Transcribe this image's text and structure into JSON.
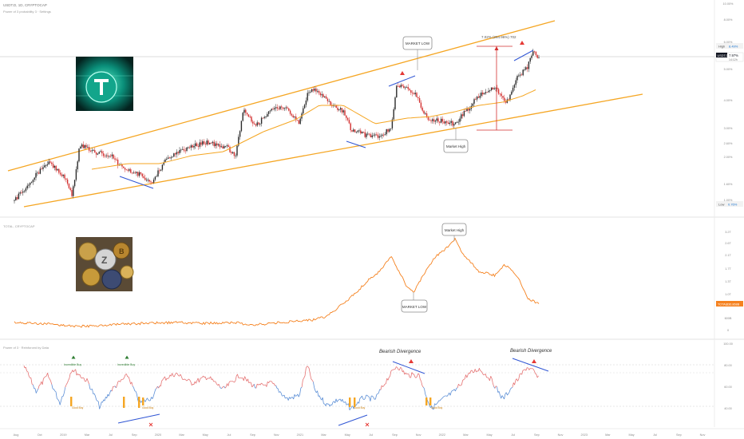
{
  "header": {
    "symbol_line": "USDT.D, 1D, CRYPTOCAP",
    "indicator_line": "Power of 3 probability 3 · Settings"
  },
  "panes": {
    "sub_title": "TOTAL, CRYPTOCAP",
    "osc_title": "Power of 3 · Reinforced by Data"
  },
  "price_labels": {
    "high_label": "High",
    "high_value": "8.49%",
    "current_symbol": "USDT.D",
    "current_value": "7.97%",
    "current_time": "14:12h",
    "low_label": "Low",
    "low_value": "0.76%",
    "total_symbol": "TOTAL",
    "total_value": "836.868B"
  },
  "main_axis_ticks": [
    "10.00%",
    "8.00%",
    "6.00%",
    "5.00%",
    "4.00%",
    "3.00%",
    "2.60%",
    "2.00%",
    "1.60%",
    "1.00%"
  ],
  "sub_axis_ticks": [
    "3.2T",
    "2.6T",
    "2.1T",
    "1.7T",
    "1.3T",
    "1.0T",
    "600B",
    "0"
  ],
  "osc_axis_ticks": [
    "100.00",
    "80.00",
    "60.00",
    "40.00"
  ],
  "time_axis_ticks": [
    "Aug",
    "Oct",
    "2019",
    "Mar",
    "Jul",
    "Sep",
    "2020",
    "Mar",
    "May",
    "Jul",
    "Sep",
    "Nov",
    "2021",
    "Mar",
    "May",
    "Jul",
    "Sep",
    "Nov",
    "2022",
    "Mar",
    "May",
    "Jul",
    "Sep",
    "Nov",
    "2023",
    "Mar",
    "May",
    "Jul",
    "Sep",
    "Nov"
  ],
  "callouts": {
    "main_market_low": "MARKET LOW",
    "main_market_high": "Market High",
    "measure": "7.02% (264.96%) 702",
    "sub_market_high": "Market High",
    "sub_market_low": "MARKET LOW",
    "osc_bearish_1": "Bearish Divergence",
    "osc_bearish_2": "Bearish Divergence",
    "incredible_buy_1": "Incredible Buy",
    "incredible_buy_2": "Incredible Buy",
    "good_buy_1": "Good Buy",
    "good_buy_2": "Good Buy",
    "good_buy_3": "Good Buy",
    "good_buy_4": "Good Buy"
  },
  "colors": {
    "channel": "#f5a623",
    "candle_up": "#2b2b2b",
    "candle_down": "#d32f2f",
    "ma_line": "#f5a623",
    "divergence": "#2f55d4",
    "total_line": "#f58220",
    "osc_high": "#e57373",
    "osc_low": "#5c8fd6",
    "buy_bar": "#f5a623",
    "measure": "#d32f2f"
  },
  "images": {
    "tether_logo": "tether-logo-image",
    "crypto_coins": "crypto-coins-image"
  },
  "chart_data": [
    {
      "type": "candlestick",
      "title": "USDT.D, 1D, CRYPTOCAP",
      "x": [
        "2018-07",
        "2018-08",
        "2018-10",
        "2018-12",
        "2019-01",
        "2019-03",
        "2019-05",
        "2019-07",
        "2019-09",
        "2019-11",
        "2020-01",
        "2020-03",
        "2020-05",
        "2020-07",
        "2020-09",
        "2020-11",
        "2021-01",
        "2021-03",
        "2021-05",
        "2021-07",
        "2021-09",
        "2021-11",
        "2022-01",
        "2022-03",
        "2022-05",
        "2022-07"
      ],
      "close": [
        1.0,
        1.3,
        1.9,
        1.2,
        2.2,
        2.0,
        1.6,
        2.0,
        2.1,
        2.6,
        2.3,
        3.5,
        3.0,
        2.8,
        3.4,
        4.0,
        3.6,
        3.3,
        3.1,
        4.5,
        3.6,
        3.2,
        3.3,
        4.1,
        5.0,
        7.97
      ],
      "high_marker": 8.49,
      "low_marker": 0.76,
      "annotations": [
        "MARKET LOW",
        "Market High",
        "7.02% (264.96%) 702"
      ]
    },
    {
      "type": "line",
      "title": "TOTAL, CRYPTOCAP",
      "x": [
        "2018-07",
        "2018-10",
        "2019-01",
        "2019-04",
        "2019-07",
        "2019-10",
        "2020-01",
        "2020-04",
        "2020-07",
        "2020-10",
        "2021-01",
        "2021-03",
        "2021-05",
        "2021-07",
        "2021-09",
        "2021-11",
        "2022-01",
        "2022-03",
        "2022-05",
        "2022-07"
      ],
      "values": [
        300,
        220,
        130,
        180,
        330,
        200,
        210,
        160,
        290,
        400,
        900,
        1700,
        2300,
        1300,
        2100,
        3000,
        2000,
        1900,
        1300,
        836.868
      ],
      "unit": "B",
      "annotations": [
        "Market High",
        "MARKET LOW"
      ]
    },
    {
      "type": "line",
      "title": "Power of 3 · Reinforced by Data",
      "ylim": [
        30,
        100
      ],
      "levels": [
        80,
        40
      ],
      "annotations": [
        "Bearish Divergence",
        "Bearish Divergence",
        "Incredible Buy",
        "Incredible Buy",
        "Good Buy"
      ]
    }
  ]
}
